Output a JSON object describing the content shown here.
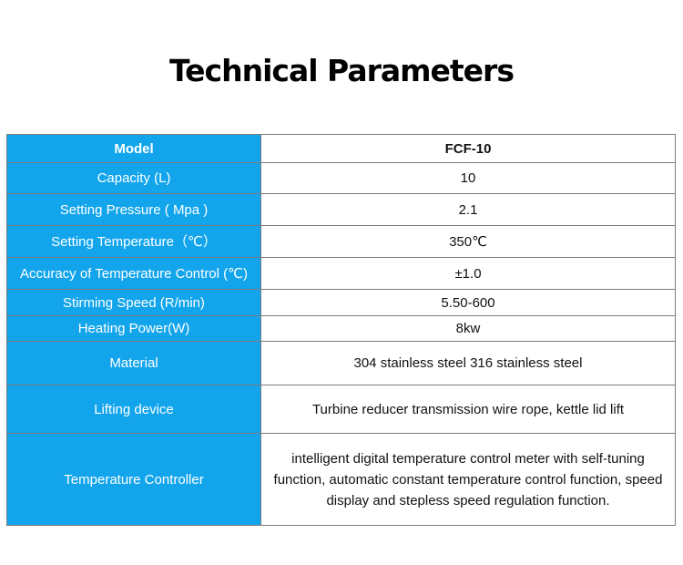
{
  "title": "Technical Parameters",
  "colors": {
    "label_background": "#12a5ec",
    "label_text": "#ffffff",
    "value_background": "#ffffff",
    "border": "#7a7a7a"
  },
  "table": {
    "header": {
      "label": "Model",
      "value": "FCF-10"
    },
    "rows": [
      {
        "label": "Capacity (L)",
        "value": "10"
      },
      {
        "label": "Setting Pressure ( Mpa )",
        "value": "2.1"
      },
      {
        "label": "Setting Temperature（℃）",
        "value": "350℃"
      },
      {
        "label": "Accuracy of  Temperature Control (℃)",
        "value": "±1.0"
      },
      {
        "label": "Stirming Speed (R/min)",
        "value": "5.50-600"
      },
      {
        "label": "Heating Power(W)",
        "value": "8kw"
      },
      {
        "label": "Material",
        "value": "304 stainless steel 316 stainless steel"
      },
      {
        "label": "Lifting device",
        "value": "Turbine reducer transmission wire rope, kettle lid lift"
      },
      {
        "label": "Temperature Controller",
        "value": "intelligent digital temperature control meter with self-tuning function, automatic constant temperature control function, speed display and stepless speed regulation function."
      }
    ]
  }
}
